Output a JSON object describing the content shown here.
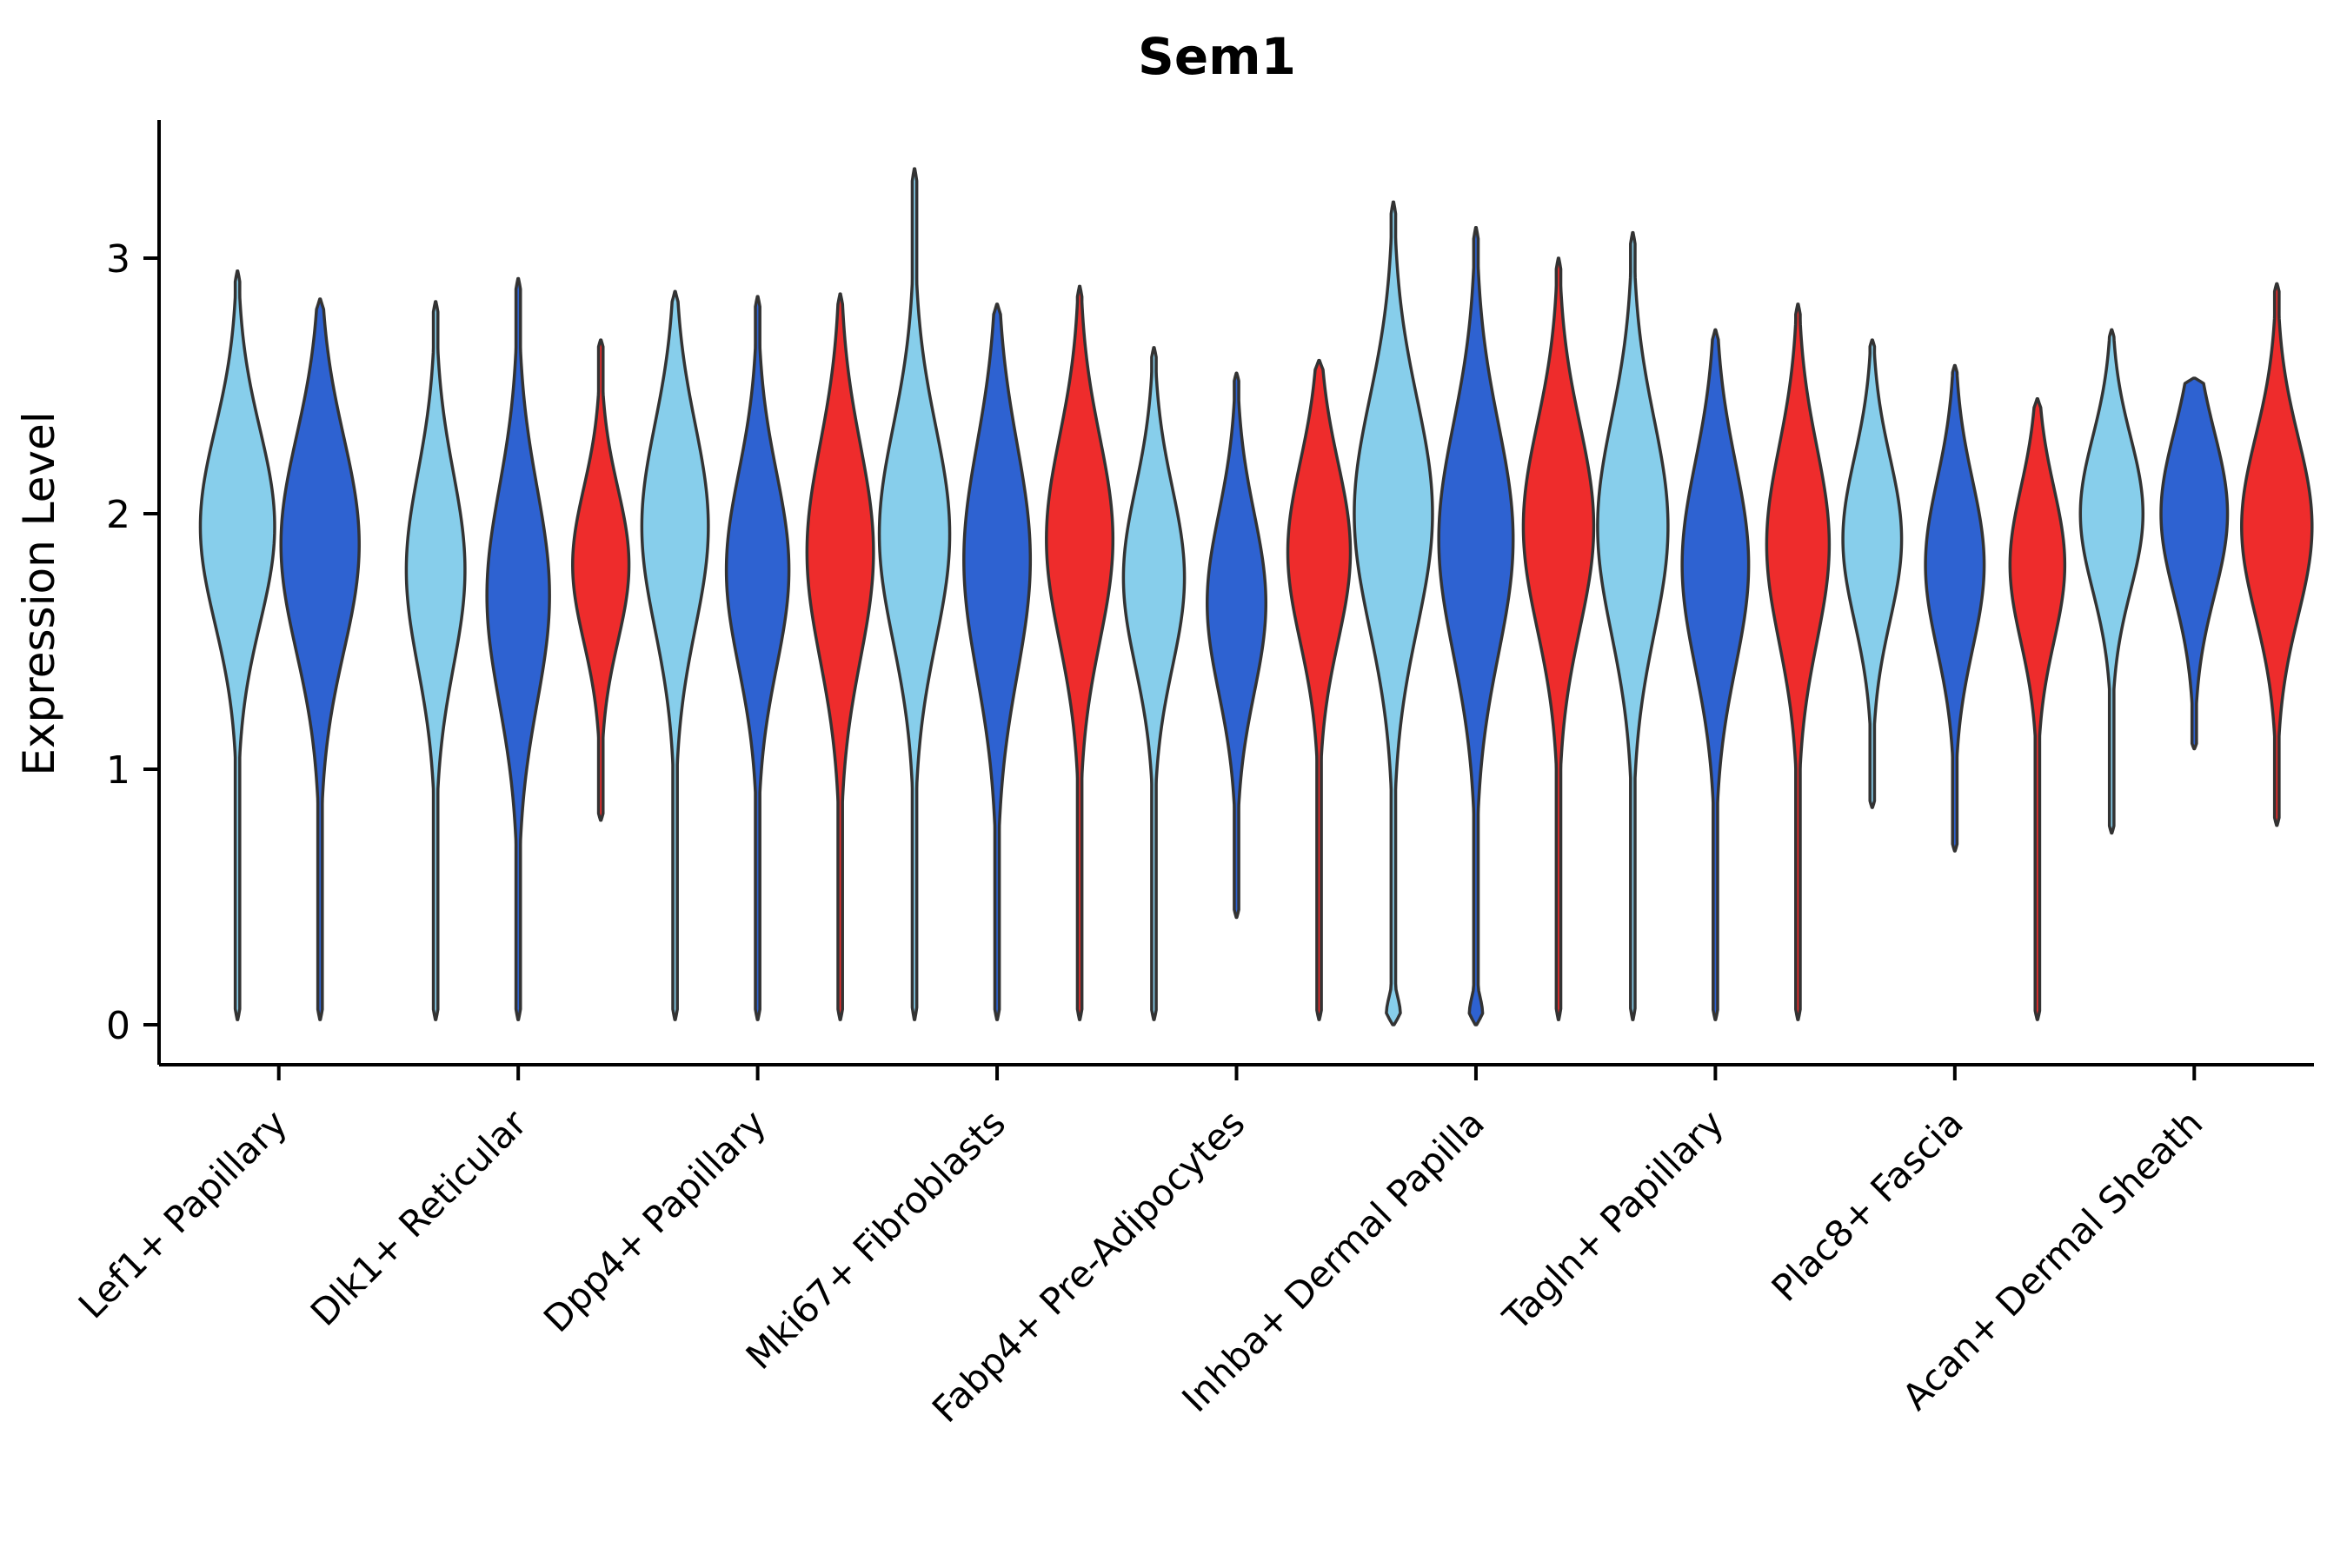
{
  "title": "Sem1",
  "chart_data": {
    "type": "violin",
    "title": "Sem1",
    "xlabel": "",
    "ylabel": "Expression Level",
    "yticks": [
      0,
      1,
      2,
      3
    ],
    "ylim": [
      -0.16,
      3.55
    ],
    "legend": "none",
    "grid": false,
    "series_colors": {
      "light_blue": "#87CEEB",
      "dark_blue": "#2E62D1",
      "red": "#EE2C2C",
      "outline": "#333333"
    },
    "categories": [
      "Lef1+ Papillary",
      "Dlk1+ Reticular",
      "Dpp4+ Papillary",
      "Mki67+ Fibroblasts",
      "Fabp4+ Pre-Adipocytes",
      "Inhba+ Dermal Papilla",
      "Tagln+ Papillary",
      "Plac8+ Fascia",
      "Acan+ Dermal Sheath"
    ],
    "groups": [
      {
        "category": "Lef1+ Papillary",
        "violins": [
          {
            "series": "light_blue",
            "min": 0.02,
            "max": 2.95,
            "mode": 1.95,
            "sigma": 0.38,
            "width": 0.95
          },
          {
            "series": "dark_blue",
            "min": 0.02,
            "max": 2.84,
            "mode": 1.88,
            "sigma": 0.42,
            "width": 1.0
          }
        ]
      },
      {
        "category": "Dlk1+ Reticular",
        "violins": [
          {
            "series": "light_blue",
            "min": 0.02,
            "max": 2.83,
            "mode": 1.78,
            "sigma": 0.38,
            "width": 0.75
          },
          {
            "series": "dark_blue",
            "min": 0.02,
            "max": 2.92,
            "mode": 1.68,
            "sigma": 0.42,
            "width": 0.8
          },
          {
            "series": "red",
            "min": 0.8,
            "max": 2.68,
            "mode": 1.8,
            "sigma": 0.3,
            "width": 0.72
          }
        ]
      },
      {
        "category": "Dpp4+ Papillary",
        "violins": [
          {
            "series": "light_blue",
            "min": 0.02,
            "max": 2.87,
            "mode": 1.95,
            "sigma": 0.4,
            "width": 0.85
          },
          {
            "series": "dark_blue",
            "min": 0.02,
            "max": 2.85,
            "mode": 1.78,
            "sigma": 0.38,
            "width": 0.8
          },
          {
            "series": "red",
            "min": 0.02,
            "max": 2.86,
            "mode": 1.85,
            "sigma": 0.42,
            "width": 0.85
          }
        ]
      },
      {
        "category": "Mki67+ Fibroblasts",
        "violins": [
          {
            "series": "light_blue",
            "min": 0.02,
            "max": 3.35,
            "mode": 1.92,
            "sigma": 0.42,
            "width": 0.9
          },
          {
            "series": "dark_blue",
            "min": 0.02,
            "max": 2.82,
            "mode": 1.82,
            "sigma": 0.45,
            "width": 0.85
          },
          {
            "series": "red",
            "min": 0.02,
            "max": 2.89,
            "mode": 1.9,
            "sigma": 0.4,
            "width": 0.85
          }
        ]
      },
      {
        "category": "Fabp4+ Pre-Adipocytes",
        "violins": [
          {
            "series": "light_blue",
            "min": 0.02,
            "max": 2.65,
            "mode": 1.75,
            "sigma": 0.35,
            "width": 0.78
          },
          {
            "series": "dark_blue",
            "min": 0.42,
            "max": 2.55,
            "mode": 1.65,
            "sigma": 0.35,
            "width": 0.75
          },
          {
            "series": "red",
            "min": 0.02,
            "max": 2.6,
            "mode": 1.85,
            "sigma": 0.35,
            "width": 0.8
          }
        ]
      },
      {
        "category": "Inhba+ Dermal Papilla",
        "violins": [
          {
            "series": "light_blue",
            "min": 0.0,
            "max": 3.22,
            "mode": 2.0,
            "sigma": 0.45,
            "width": 1.0,
            "bump": [
              0.18,
              0.04,
              0.07
            ]
          },
          {
            "series": "dark_blue",
            "min": 0.0,
            "max": 3.12,
            "mode": 1.9,
            "sigma": 0.45,
            "width": 0.95,
            "bump": [
              0.18,
              0.04,
              0.07
            ]
          },
          {
            "series": "red",
            "min": 0.02,
            "max": 3.0,
            "mode": 1.95,
            "sigma": 0.4,
            "width": 0.9
          }
        ]
      },
      {
        "category": "Tagln+ Papillary",
        "violins": [
          {
            "series": "light_blue",
            "min": 0.02,
            "max": 3.1,
            "mode": 1.95,
            "sigma": 0.42,
            "width": 0.9
          },
          {
            "series": "dark_blue",
            "min": 0.02,
            "max": 2.72,
            "mode": 1.8,
            "sigma": 0.4,
            "width": 0.85
          },
          {
            "series": "red",
            "min": 0.02,
            "max": 2.82,
            "mode": 1.88,
            "sigma": 0.38,
            "width": 0.8
          }
        ]
      },
      {
        "category": "Plac8+ Fascia",
        "violins": [
          {
            "series": "light_blue",
            "min": 0.85,
            "max": 2.68,
            "mode": 1.9,
            "sigma": 0.32,
            "width": 0.75
          },
          {
            "series": "dark_blue",
            "min": 0.68,
            "max": 2.58,
            "mode": 1.8,
            "sigma": 0.33,
            "width": 0.75
          },
          {
            "series": "red",
            "min": 0.02,
            "max": 2.45,
            "mode": 1.8,
            "sigma": 0.3,
            "width": 0.7
          }
        ]
      },
      {
        "category": "Acan+ Dermal Sheath",
        "violins": [
          {
            "series": "light_blue",
            "min": 0.75,
            "max": 2.72,
            "mode": 2.0,
            "sigma": 0.3,
            "width": 0.8
          },
          {
            "series": "dark_blue",
            "min": 1.08,
            "max": 2.53,
            "mode": 2.0,
            "sigma": 0.32,
            "width": 0.85
          },
          {
            "series": "red",
            "min": 0.78,
            "max": 2.9,
            "mode": 1.95,
            "sigma": 0.35,
            "width": 0.9
          }
        ]
      }
    ]
  }
}
